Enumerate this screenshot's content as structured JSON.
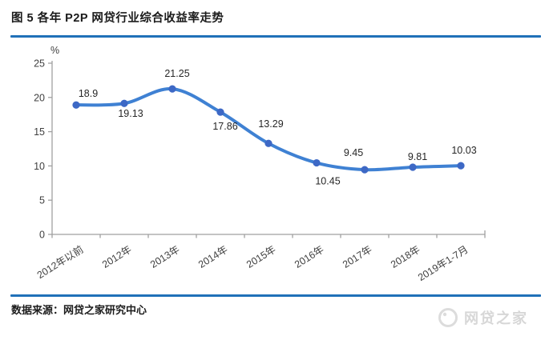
{
  "header": {
    "title": "图 5  各年 P2P 网贷行业综合收益率走势"
  },
  "footer": {
    "source": "数据来源：网贷之家研究中心",
    "watermark": "网贷之家"
  },
  "colors": {
    "divider": "#2071b8",
    "line": "#3f81d3",
    "marker": "#3d68c5",
    "axis": "#a0a0a0",
    "tick_text": "#404040",
    "data_label": "#262626",
    "watermark": "#d7d7d7"
  },
  "chart_data": {
    "type": "line",
    "title": "各年P2P网贷行业综合收益率走势",
    "unit_label": "%",
    "categories": [
      "2012年以前",
      "2012年",
      "2013年",
      "2014年",
      "2015年",
      "2016年",
      "2017年",
      "2018年",
      "2019年1-7月"
    ],
    "series": [
      {
        "name": "综合收益率",
        "values": [
          18.9,
          19.13,
          21.25,
          17.86,
          13.29,
          10.45,
          9.45,
          9.81,
          10.03
        ],
        "value_labels": [
          "18.9",
          "19.13",
          "21.25",
          "17.86",
          "13.29",
          "10.45",
          "9.45",
          "9.81",
          "10.03"
        ]
      }
    ],
    "ylim": [
      0,
      25
    ],
    "ytick_step": 5,
    "grid": false,
    "legend": "none",
    "smooth_line": true,
    "label_positions": [
      "above",
      "below",
      "above",
      "below",
      "above",
      "below",
      "above",
      "above",
      "above"
    ],
    "label_dx": [
      15,
      8,
      6,
      6,
      3,
      14,
      -14,
      6,
      4
    ],
    "label_dy": [
      -10,
      17,
      -15,
      22,
      -20,
      27,
      -17,
      -9,
      -15
    ]
  }
}
